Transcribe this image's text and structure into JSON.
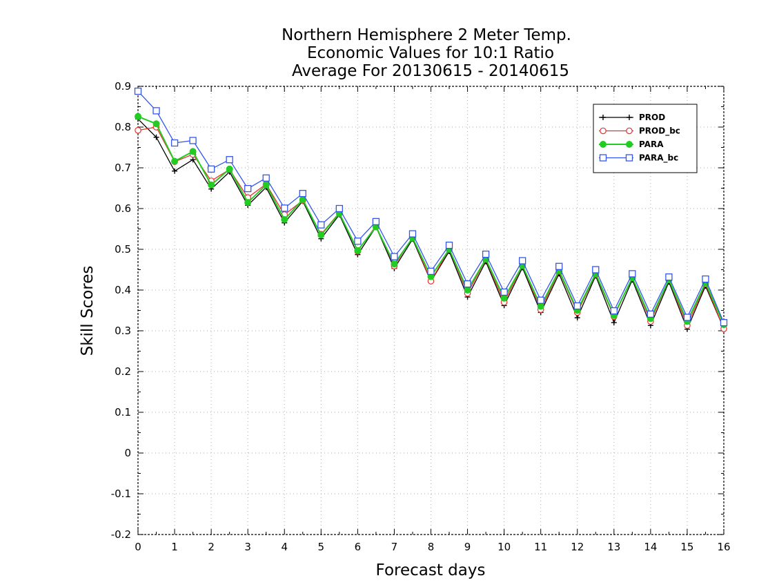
{
  "chart_data": {
    "type": "line",
    "title_lines": [
      "Northern Hemisphere 2 Meter Temp.",
      "Economic Values for 10:1 Ratio",
      "Average For 20130615 - 20140615"
    ],
    "xlabel": "Forecast days",
    "ylabel": "Skill Scores",
    "xlim": [
      0,
      16
    ],
    "ylim": [
      -0.2,
      0.9
    ],
    "x_ticks": [
      0,
      1,
      2,
      3,
      4,
      5,
      6,
      7,
      8,
      9,
      10,
      11,
      12,
      13,
      14,
      15,
      16
    ],
    "y_ticks": [
      -0.2,
      -0.1,
      0,
      0.1,
      0.2,
      0.3,
      0.4,
      0.5,
      0.6,
      0.7,
      0.8,
      0.9
    ],
    "grid": true,
    "legend_position": "top-right",
    "x": [
      0,
      0.5,
      1,
      1.5,
      2,
      2.5,
      3,
      3.5,
      4,
      4.5,
      5,
      5.5,
      6,
      6.5,
      7,
      7.5,
      8,
      8.5,
      9,
      9.5,
      10,
      10.5,
      11,
      11.5,
      12,
      12.5,
      13,
      13.5,
      14,
      14.5,
      15,
      15.5,
      16
    ],
    "series": [
      {
        "name": "PROD",
        "color": "#000000",
        "marker": "plus",
        "values": [
          0.82,
          0.775,
          0.692,
          0.72,
          0.648,
          0.69,
          0.608,
          0.652,
          0.565,
          0.618,
          0.526,
          0.585,
          0.487,
          0.555,
          0.453,
          0.525,
          0.421,
          0.495,
          0.383,
          0.47,
          0.362,
          0.455,
          0.345,
          0.44,
          0.332,
          0.435,
          0.32,
          0.425,
          0.313,
          0.42,
          0.304,
          0.41,
          0.305
        ]
      },
      {
        "name": "PROD_bc",
        "color": "#e8302a",
        "marker": "circle-open",
        "values": [
          0.792,
          0.8,
          0.715,
          0.733,
          0.668,
          0.696,
          0.627,
          0.66,
          0.585,
          0.62,
          0.537,
          0.59,
          0.495,
          0.558,
          0.459,
          0.53,
          0.422,
          0.5,
          0.392,
          0.475,
          0.37,
          0.46,
          0.352,
          0.446,
          0.345,
          0.438,
          0.335,
          0.43,
          0.323,
          0.425,
          0.313,
          0.415,
          0.305
        ]
      },
      {
        "name": "PARA",
        "color": "#22cc22",
        "marker": "circle-filled",
        "values": [
          0.826,
          0.808,
          0.716,
          0.74,
          0.658,
          0.697,
          0.615,
          0.658,
          0.573,
          0.622,
          0.535,
          0.588,
          0.497,
          0.555,
          0.464,
          0.528,
          0.433,
          0.5,
          0.4,
          0.476,
          0.38,
          0.46,
          0.36,
          0.448,
          0.35,
          0.44,
          0.338,
          0.43,
          0.33,
          0.425,
          0.323,
          0.418,
          0.315
        ]
      },
      {
        "name": "PARA_bc",
        "color": "#3355ee",
        "marker": "square-open",
        "values": [
          0.888,
          0.84,
          0.761,
          0.767,
          0.697,
          0.72,
          0.649,
          0.675,
          0.601,
          0.637,
          0.56,
          0.6,
          0.52,
          0.568,
          0.482,
          0.538,
          0.446,
          0.51,
          0.415,
          0.488,
          0.395,
          0.472,
          0.375,
          0.458,
          0.361,
          0.45,
          0.349,
          0.44,
          0.341,
          0.432,
          0.333,
          0.427,
          0.32
        ]
      }
    ]
  }
}
